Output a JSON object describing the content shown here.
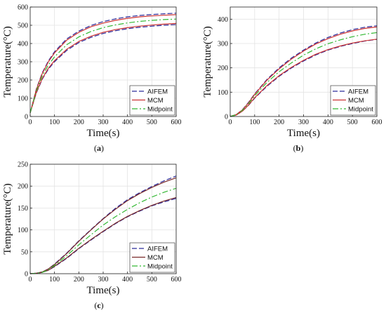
{
  "figure": {
    "background": "#ffffff"
  },
  "style": {
    "colors": {
      "AIFEM": "#2b2b9a",
      "MCM": "#cc3333",
      "MCM_c": "#7a2a2a",
      "Midpoint": "#33b833",
      "grid": "#e3e3e3"
    },
    "dash": {
      "AIFEM": "7,3",
      "MCM": "",
      "Midpoint": "8,3,2,3"
    }
  },
  "chart_data": [
    {
      "panel": "(a)",
      "type": "line",
      "xlabel": "Time(s)",
      "ylabel": "Temperature(°C)",
      "xlim": [
        0,
        600
      ],
      "ylim": [
        0,
        600
      ],
      "xticks": [
        0,
        100,
        200,
        300,
        400,
        500,
        600
      ],
      "yticks": [
        0,
        100,
        200,
        300,
        400,
        500,
        600
      ],
      "grid": true,
      "legend": {
        "position": "bottom-right",
        "entries": [
          "AIFEM",
          "MCM",
          "Midpoint"
        ]
      },
      "x": [
        0,
        25,
        50,
        75,
        100,
        150,
        200,
        250,
        300,
        350,
        400,
        450,
        500,
        550,
        600
      ],
      "series": [
        {
          "name": "AIFEM",
          "style": "AIFEM",
          "values": [
            20,
            150,
            240,
            305,
            355,
            425,
            468,
            499,
            520,
            535,
            546,
            554,
            559,
            563,
            566
          ]
        },
        {
          "name": "AIFEM",
          "style": "AIFEM",
          "values": [
            20,
            128,
            205,
            260,
            300,
            362,
            405,
            434,
            455,
            470,
            481,
            489,
            495,
            500,
            504
          ]
        },
        {
          "name": "MCM",
          "style": "MCM",
          "values": [
            20,
            147,
            236,
            300,
            349,
            418,
            461,
            492,
            512,
            527,
            538,
            546,
            551,
            555,
            558
          ]
        },
        {
          "name": "MCM",
          "style": "MCM",
          "values": [
            20,
            131,
            209,
            265,
            306,
            368,
            411,
            440,
            461,
            476,
            487,
            495,
            501,
            506,
            510
          ]
        },
        {
          "name": "Midpoint",
          "style": "Midpoint",
          "values": [
            20,
            139,
            223,
            283,
            327,
            393,
            436,
            466,
            487,
            502,
            513,
            521,
            527,
            531,
            534
          ]
        }
      ]
    },
    {
      "panel": "(b)",
      "type": "line",
      "xlabel": "Time(s)",
      "ylabel": "Temperature(°C)",
      "xlim": [
        0,
        600
      ],
      "ylim": [
        0,
        450
      ],
      "xticks": [
        0,
        100,
        200,
        300,
        400,
        500,
        600
      ],
      "yticks": [
        0,
        100,
        200,
        300,
        400
      ],
      "grid": true,
      "legend": {
        "position": "bottom-right",
        "entries": [
          "AIFEM",
          "MCM",
          "Midpoint"
        ]
      },
      "x": [
        0,
        25,
        50,
        75,
        100,
        150,
        200,
        250,
        300,
        350,
        400,
        450,
        500,
        550,
        600
      ],
      "series": [
        {
          "name": "AIFEM",
          "style": "AIFEM",
          "values": [
            0,
            8,
            28,
            58,
            93,
            152,
            200,
            240,
            273,
            302,
            325,
            343,
            357,
            367,
            373
          ]
        },
        {
          "name": "AIFEM",
          "style": "AIFEM",
          "values": [
            0,
            6,
            22,
            46,
            75,
            124,
            165,
            199,
            228,
            253,
            273,
            288,
            300,
            310,
            317
          ]
        },
        {
          "name": "MCM",
          "style": "MCM",
          "values": [
            0,
            8,
            27,
            56,
            91,
            149,
            196,
            236,
            269,
            298,
            320,
            338,
            352,
            362,
            368
          ]
        },
        {
          "name": "MCM",
          "style": "MCM",
          "values": [
            0,
            6,
            22,
            47,
            77,
            127,
            168,
            202,
            231,
            256,
            275,
            290,
            302,
            311,
            318
          ]
        },
        {
          "name": "Midpoint",
          "style": "Midpoint",
          "values": [
            0,
            7,
            25,
            52,
            85,
            140,
            184,
            220,
            252,
            278,
            299,
            315,
            328,
            338,
            345
          ]
        }
      ]
    },
    {
      "panel": "(c)",
      "type": "line",
      "xlabel": "Time(s)",
      "ylabel": "Temperature(°C)",
      "xlim": [
        0,
        600
      ],
      "ylim": [
        0,
        250
      ],
      "xticks": [
        0,
        100,
        200,
        300,
        400,
        500,
        600
      ],
      "yticks": [
        0,
        50,
        100,
        150,
        200,
        250
      ],
      "grid": true,
      "legend": {
        "position": "bottom-right",
        "entries": [
          "AIFEM",
          "MCM",
          "Midpoint"
        ]
      },
      "x": [
        0,
        25,
        50,
        75,
        100,
        150,
        200,
        250,
        300,
        350,
        400,
        450,
        500,
        550,
        600
      ],
      "series": [
        {
          "name": "AIFEM",
          "style": "AIFEM",
          "values": [
            0,
            1,
            4,
            11,
            22,
            47,
            75,
            101,
            126,
            149,
            169,
            185,
            199,
            212,
            223
          ]
        },
        {
          "name": "AIFEM",
          "style": "AIFEM",
          "values": [
            0,
            1,
            3,
            8,
            16,
            35,
            57,
            77,
            96,
            114,
            130,
            143,
            155,
            164,
            172
          ]
        },
        {
          "name": "MCM",
          "style": "MCM_c",
          "values": [
            0,
            1,
            4,
            11,
            21,
            46,
            74,
            100,
            125,
            147,
            167,
            183,
            197,
            209,
            219
          ]
        },
        {
          "name": "MCM",
          "style": "MCM_c",
          "values": [
            0,
            1,
            3,
            8,
            17,
            36,
            58,
            78,
            97,
            115,
            131,
            144,
            156,
            166,
            174
          ]
        },
        {
          "name": "Midpoint",
          "style": "Midpoint",
          "values": [
            0,
            1,
            3,
            9,
            19,
            41,
            66,
            89,
            111,
            130,
            147,
            162,
            175,
            186,
            195
          ]
        }
      ]
    }
  ]
}
